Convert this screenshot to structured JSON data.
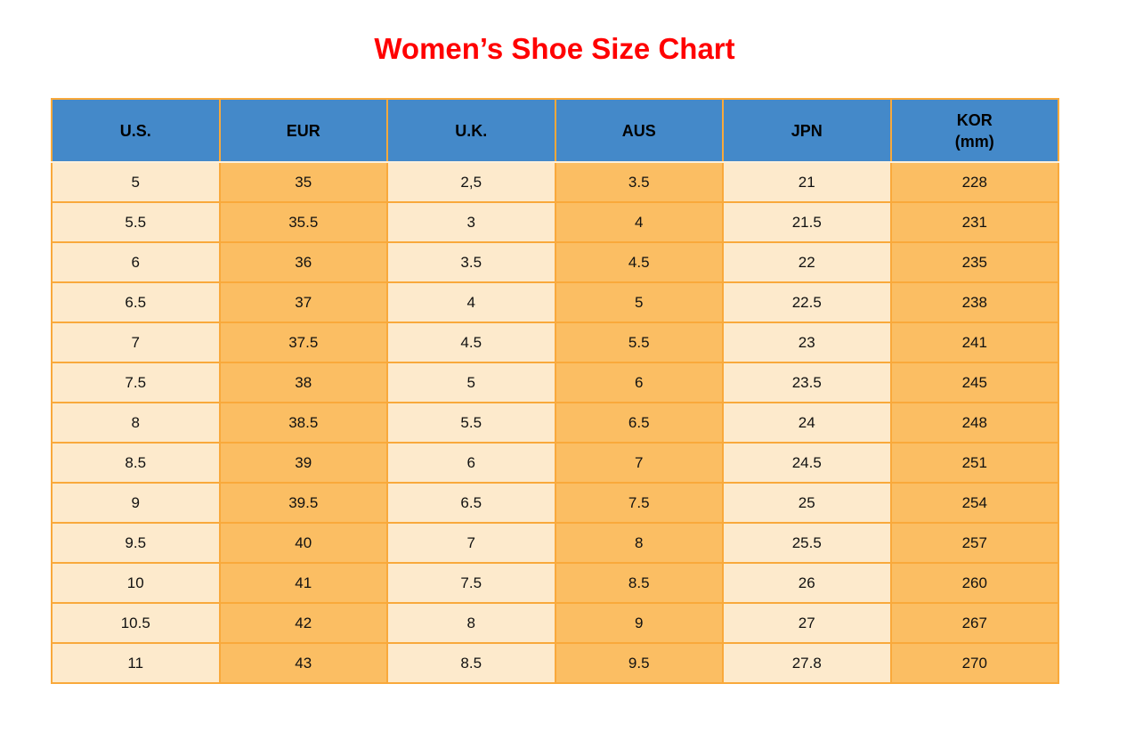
{
  "page": {
    "title": "Women’s Shoe Size Chart"
  },
  "colors": {
    "title": "#ff0000",
    "header_bg": "#4489c9",
    "header_text": "#000000",
    "cell_light": "#fdeacc",
    "cell_orange": "#fbbe63",
    "border": "#f9a93b",
    "header_divider": "#fdf0dc",
    "cell_text": "#111111"
  },
  "chart_data": {
    "type": "table",
    "title": "Women’s Shoe Size Chart",
    "columns": [
      {
        "label": "U.S.",
        "sub": ""
      },
      {
        "label": "EUR",
        "sub": ""
      },
      {
        "label": "U.K.",
        "sub": ""
      },
      {
        "label": "AUS",
        "sub": ""
      },
      {
        "label": "JPN",
        "sub": ""
      },
      {
        "label": "KOR",
        "sub": "(mm)"
      }
    ],
    "column_fill_pattern": [
      "light",
      "orange",
      "light",
      "orange",
      "light",
      "orange"
    ],
    "rows": [
      [
        "5",
        "35",
        "2,5",
        "3.5",
        "21",
        "228"
      ],
      [
        "5.5",
        "35.5",
        "3",
        "4",
        "21.5",
        "231"
      ],
      [
        "6",
        "36",
        "3.5",
        "4.5",
        "22",
        "235"
      ],
      [
        "6.5",
        "37",
        "4",
        "5",
        "22.5",
        "238"
      ],
      [
        "7",
        "37.5",
        "4.5",
        "5.5",
        "23",
        "241"
      ],
      [
        "7.5",
        "38",
        "5",
        "6",
        "23.5",
        "245"
      ],
      [
        "8",
        "38.5",
        "5.5",
        "6.5",
        "24",
        "248"
      ],
      [
        "8.5",
        "39",
        "6",
        "7",
        "24.5",
        "251"
      ],
      [
        "9",
        "39.5",
        "6.5",
        "7.5",
        "25",
        "254"
      ],
      [
        "9.5",
        "40",
        "7",
        "8",
        "25.5",
        "257"
      ],
      [
        "10",
        "41",
        "7.5",
        "8.5",
        "26",
        "260"
      ],
      [
        "10.5",
        "42",
        "8",
        "9",
        "27",
        "267"
      ],
      [
        "11",
        "43",
        "8.5",
        "9.5",
        "27.8",
        "270"
      ]
    ]
  }
}
